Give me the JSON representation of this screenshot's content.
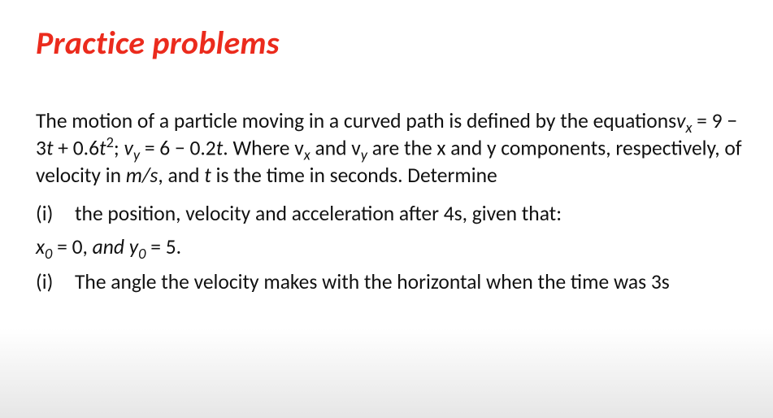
{
  "title": "Practice problems",
  "colors": {
    "title": "#eb2b1d",
    "text": "#111111",
    "background": "#ffffff"
  },
  "paragraph": {
    "pre": "The motion of a particle moving in a curved path is defined by the equations",
    "vx_lhs_var": "v",
    "vx_lhs_sub": "x",
    "eq1": " = 9 − 3",
    "t1": "t",
    "eq1b": " + 0.6",
    "t2": "t",
    "sq": "2",
    "sep": "; ",
    "vy_lhs_var": "v",
    "vy_lhs_sub": "y",
    "eq2": " = 6 − 0.2",
    "t3": "t",
    "post_a": ". Where v",
    "post_sub_x": "x",
    "post_b": " and v",
    "post_sub_y": "y",
    "post_c": " are the x and y components, respectively, of velocity in ",
    "units": "m/s",
    "post_d": ", and ",
    "t4": "t",
    "post_e": " is the time  in seconds. Determine"
  },
  "items": {
    "i1_marker": "(i)",
    "i1_text": "the position, velocity and acceleration after 4s, given that:",
    "initial_x_var": "x",
    "initial_x_sub": "0",
    "initial_eq1": " = 0, ",
    "initial_and": "and ",
    "initial_y_var": "y",
    "initial_y_sub": "0",
    "initial_eq2": " = 5.",
    "i2_marker": "(i)",
    "i2_text": "The angle the velocity makes with the horizontal when the time was 3s"
  }
}
